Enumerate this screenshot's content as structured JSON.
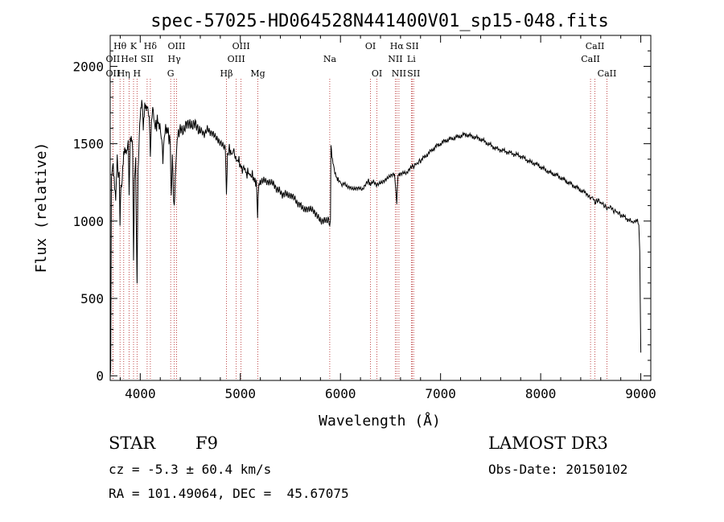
{
  "chart_data": {
    "type": "line",
    "title": "spec-57025-HD064528N441400V01_sp15-048.fits",
    "xlabel": "Wavelength (Å)",
    "ylabel": "Flux (relative)",
    "xlim": [
      3700,
      9100
    ],
    "ylim": [
      -30,
      2200
    ],
    "x_ticks": [
      4000,
      5000,
      6000,
      7000,
      8000,
      9000
    ],
    "x_tick_labels": [
      "4000",
      "5000",
      "6000",
      "7000",
      "8000",
      "9000"
    ],
    "y_ticks": [
      0,
      500,
      1000,
      1500,
      2000
    ],
    "y_tick_labels": [
      "0",
      "500",
      "1000",
      "1500",
      "2000"
    ],
    "grid": false,
    "line_color": "#000000",
    "marker_color": "#b22222",
    "series": [
      {
        "name": "flux",
        "points": [
          [
            3700,
            0
          ],
          [
            3705,
            40
          ],
          [
            3712,
            1280
          ],
          [
            3725,
            1350
          ],
          [
            3740,
            1260
          ],
          [
            3755,
            1180
          ],
          [
            3770,
            1420
          ],
          [
            3780,
            1250
          ],
          [
            3790,
            1300
          ],
          [
            3798,
            960
          ],
          [
            3808,
            1220
          ],
          [
            3820,
            1300
          ],
          [
            3835,
            1400
          ],
          [
            3850,
            1450
          ],
          [
            3865,
            1480
          ],
          [
            3880,
            1520
          ],
          [
            3889,
            1180
          ],
          [
            3900,
            1500
          ],
          [
            3915,
            1560
          ],
          [
            3925,
            1500
          ],
          [
            3933,
            780
          ],
          [
            3942,
            1250
          ],
          [
            3955,
            1400
          ],
          [
            3968,
            560
          ],
          [
            3978,
            1300
          ],
          [
            3990,
            1560
          ],
          [
            4000,
            1650
          ],
          [
            4010,
            1720
          ],
          [
            4020,
            1780
          ],
          [
            4030,
            1640
          ],
          [
            4045,
            1750
          ],
          [
            4060,
            1690
          ],
          [
            4075,
            1740
          ],
          [
            4090,
            1700
          ],
          [
            4101,
            1400
          ],
          [
            4112,
            1650
          ],
          [
            4130,
            1700
          ],
          [
            4150,
            1600
          ],
          [
            4170,
            1650
          ],
          [
            4190,
            1620
          ],
          [
            4210,
            1560
          ],
          [
            4226,
            1380
          ],
          [
            4240,
            1560
          ],
          [
            4260,
            1600
          ],
          [
            4280,
            1570
          ],
          [
            4300,
            1500
          ],
          [
            4310,
            1180
          ],
          [
            4320,
            1420
          ],
          [
            4340,
            1050
          ],
          [
            4355,
            1380
          ],
          [
            4375,
            1560
          ],
          [
            4400,
            1620
          ],
          [
            4430,
            1600
          ],
          [
            4460,
            1640
          ],
          [
            4490,
            1620
          ],
          [
            4520,
            1590
          ],
          [
            4550,
            1620
          ],
          [
            4580,
            1590
          ],
          [
            4610,
            1600
          ],
          [
            4640,
            1570
          ],
          [
            4670,
            1600
          ],
          [
            4700,
            1560
          ],
          [
            4730,
            1550
          ],
          [
            4760,
            1530
          ],
          [
            4790,
            1520
          ],
          [
            4820,
            1510
          ],
          [
            4850,
            1480
          ],
          [
            4861,
            1180
          ],
          [
            4872,
            1420
          ],
          [
            4890,
            1470
          ],
          [
            4910,
            1430
          ],
          [
            4930,
            1450
          ],
          [
            4960,
            1380
          ],
          [
            4980,
            1400
          ],
          [
            5000,
            1360
          ],
          [
            5020,
            1330
          ],
          [
            5040,
            1350
          ],
          [
            5060,
            1300
          ],
          [
            5080,
            1320
          ],
          [
            5100,
            1290
          ],
          [
            5120,
            1300
          ],
          [
            5140,
            1260
          ],
          [
            5160,
            1250
          ],
          [
            5172,
            1040
          ],
          [
            5185,
            1240
          ],
          [
            5210,
            1270
          ],
          [
            5240,
            1280
          ],
          [
            5270,
            1250
          ],
          [
            5300,
            1240
          ],
          [
            5330,
            1230
          ],
          [
            5360,
            1200
          ],
          [
            5390,
            1210
          ],
          [
            5420,
            1180
          ],
          [
            5450,
            1190
          ],
          [
            5480,
            1160
          ],
          [
            5510,
            1150
          ],
          [
            5540,
            1140
          ],
          [
            5570,
            1110
          ],
          [
            5600,
            1120
          ],
          [
            5630,
            1090
          ],
          [
            5660,
            1080
          ],
          [
            5690,
            1070
          ],
          [
            5720,
            1060
          ],
          [
            5750,
            1040
          ],
          [
            5780,
            1030
          ],
          [
            5810,
            1010
          ],
          [
            5840,
            1020
          ],
          [
            5870,
            1000
          ],
          [
            5893,
            990
          ],
          [
            5900,
            1000
          ],
          [
            5905,
            1500
          ],
          [
            5915,
            1430
          ],
          [
            5930,
            1360
          ],
          [
            5950,
            1300
          ],
          [
            5970,
            1270
          ],
          [
            5990,
            1260
          ],
          [
            6010,
            1240
          ],
          [
            6040,
            1250
          ],
          [
            6070,
            1220
          ],
          [
            6100,
            1210
          ],
          [
            6130,
            1200
          ],
          [
            6160,
            1210
          ],
          [
            6190,
            1220
          ],
          [
            6220,
            1210
          ],
          [
            6250,
            1240
          ],
          [
            6280,
            1260
          ],
          [
            6300,
            1230
          ],
          [
            6330,
            1250
          ],
          [
            6360,
            1230
          ],
          [
            6390,
            1250
          ],
          [
            6420,
            1260
          ],
          [
            6450,
            1270
          ],
          [
            6480,
            1280
          ],
          [
            6510,
            1290
          ],
          [
            6540,
            1300
          ],
          [
            6562,
            1120
          ],
          [
            6575,
            1300
          ],
          [
            6600,
            1310
          ],
          [
            6630,
            1320
          ],
          [
            6660,
            1310
          ],
          [
            6690,
            1330
          ],
          [
            6720,
            1350
          ],
          [
            6760,
            1370
          ],
          [
            6800,
            1390
          ],
          [
            6850,
            1420
          ],
          [
            6900,
            1450
          ],
          [
            6950,
            1480
          ],
          [
            7000,
            1500
          ],
          [
            7050,
            1520
          ],
          [
            7100,
            1530
          ],
          [
            7150,
            1540
          ],
          [
            7200,
            1550
          ],
          [
            7250,
            1560
          ],
          [
            7300,
            1550
          ],
          [
            7350,
            1540
          ],
          [
            7400,
            1530
          ],
          [
            7450,
            1510
          ],
          [
            7500,
            1490
          ],
          [
            7550,
            1470
          ],
          [
            7600,
            1460
          ],
          [
            7650,
            1450
          ],
          [
            7700,
            1440
          ],
          [
            7750,
            1430
          ],
          [
            7800,
            1420
          ],
          [
            7850,
            1400
          ],
          [
            7900,
            1380
          ],
          [
            7950,
            1370
          ],
          [
            8000,
            1350
          ],
          [
            8050,
            1330
          ],
          [
            8100,
            1310
          ],
          [
            8150,
            1300
          ],
          [
            8200,
            1280
          ],
          [
            8250,
            1260
          ],
          [
            8300,
            1240
          ],
          [
            8350,
            1220
          ],
          [
            8400,
            1200
          ],
          [
            8450,
            1180
          ],
          [
            8498,
            1140
          ],
          [
            8520,
            1160
          ],
          [
            8542,
            1110
          ],
          [
            8560,
            1140
          ],
          [
            8600,
            1120
          ],
          [
            8640,
            1100
          ],
          [
            8662,
            1080
          ],
          [
            8690,
            1090
          ],
          [
            8720,
            1070
          ],
          [
            8760,
            1060
          ],
          [
            8800,
            1040
          ],
          [
            8850,
            1020
          ],
          [
            8900,
            1000
          ],
          [
            8940,
            990
          ],
          [
            8960,
            1010
          ],
          [
            8980,
            980
          ],
          [
            8990,
            800
          ],
          [
            9000,
            150
          ]
        ]
      }
    ],
    "line_markers": [
      {
        "label": "Hθ",
        "x": 3798,
        "row": 1
      },
      {
        "label": "OII",
        "x": 3727,
        "row": 2
      },
      {
        "label": "OII",
        "x": 3727,
        "row": 3
      },
      {
        "label": "Hη",
        "x": 3835,
        "row": 3
      },
      {
        "label": "K",
        "x": 3933,
        "row": 1
      },
      {
        "label": "HeI",
        "x": 3889,
        "row": 2
      },
      {
        "label": "H",
        "x": 3968,
        "row": 3
      },
      {
        "label": "SII",
        "x": 4069,
        "row": 2
      },
      {
        "label": "Hδ",
        "x": 4101,
        "row": 1
      },
      {
        "label": "OIII",
        "x": 4363,
        "row": 1
      },
      {
        "label": "Hγ",
        "x": 4340,
        "row": 2
      },
      {
        "label": "G",
        "x": 4304,
        "row": 3
      },
      {
        "label": "OIII",
        "x": 5007,
        "row": 1
      },
      {
        "label": "OIII",
        "x": 4959,
        "row": 2
      },
      {
        "label": "Hβ",
        "x": 4861,
        "row": 3
      },
      {
        "label": "Mg",
        "x": 5175,
        "row": 3
      },
      {
        "label": "Na",
        "x": 5893,
        "row": 2
      },
      {
        "label": "OI",
        "x": 6300,
        "row": 1
      },
      {
        "label": "OI",
        "x": 6364,
        "row": 3
      },
      {
        "label": "Hα",
        "x": 6563,
        "row": 1
      },
      {
        "label": "NII",
        "x": 6548,
        "row": 2
      },
      {
        "label": "NII",
        "x": 6584,
        "row": 3
      },
      {
        "label": "SII",
        "x": 6717,
        "row": 1
      },
      {
        "label": "Li",
        "x": 6708,
        "row": 2
      },
      {
        "label": "SII",
        "x": 6731,
        "row": 3
      },
      {
        "label": "CaII",
        "x": 8542,
        "row": 1
      },
      {
        "label": "CaII",
        "x": 8498,
        "row": 2
      },
      {
        "label": "CaII",
        "x": 8662,
        "row": 3
      }
    ]
  },
  "info": {
    "object_class": "STAR",
    "subclass": "F9",
    "survey": "LAMOST DR3",
    "redshift": "cz = -5.3 ± 60.4 km/s",
    "obs_date": "Obs-Date: 20150102",
    "coords": "RA = 101.49064, DEC =  45.67075"
  }
}
